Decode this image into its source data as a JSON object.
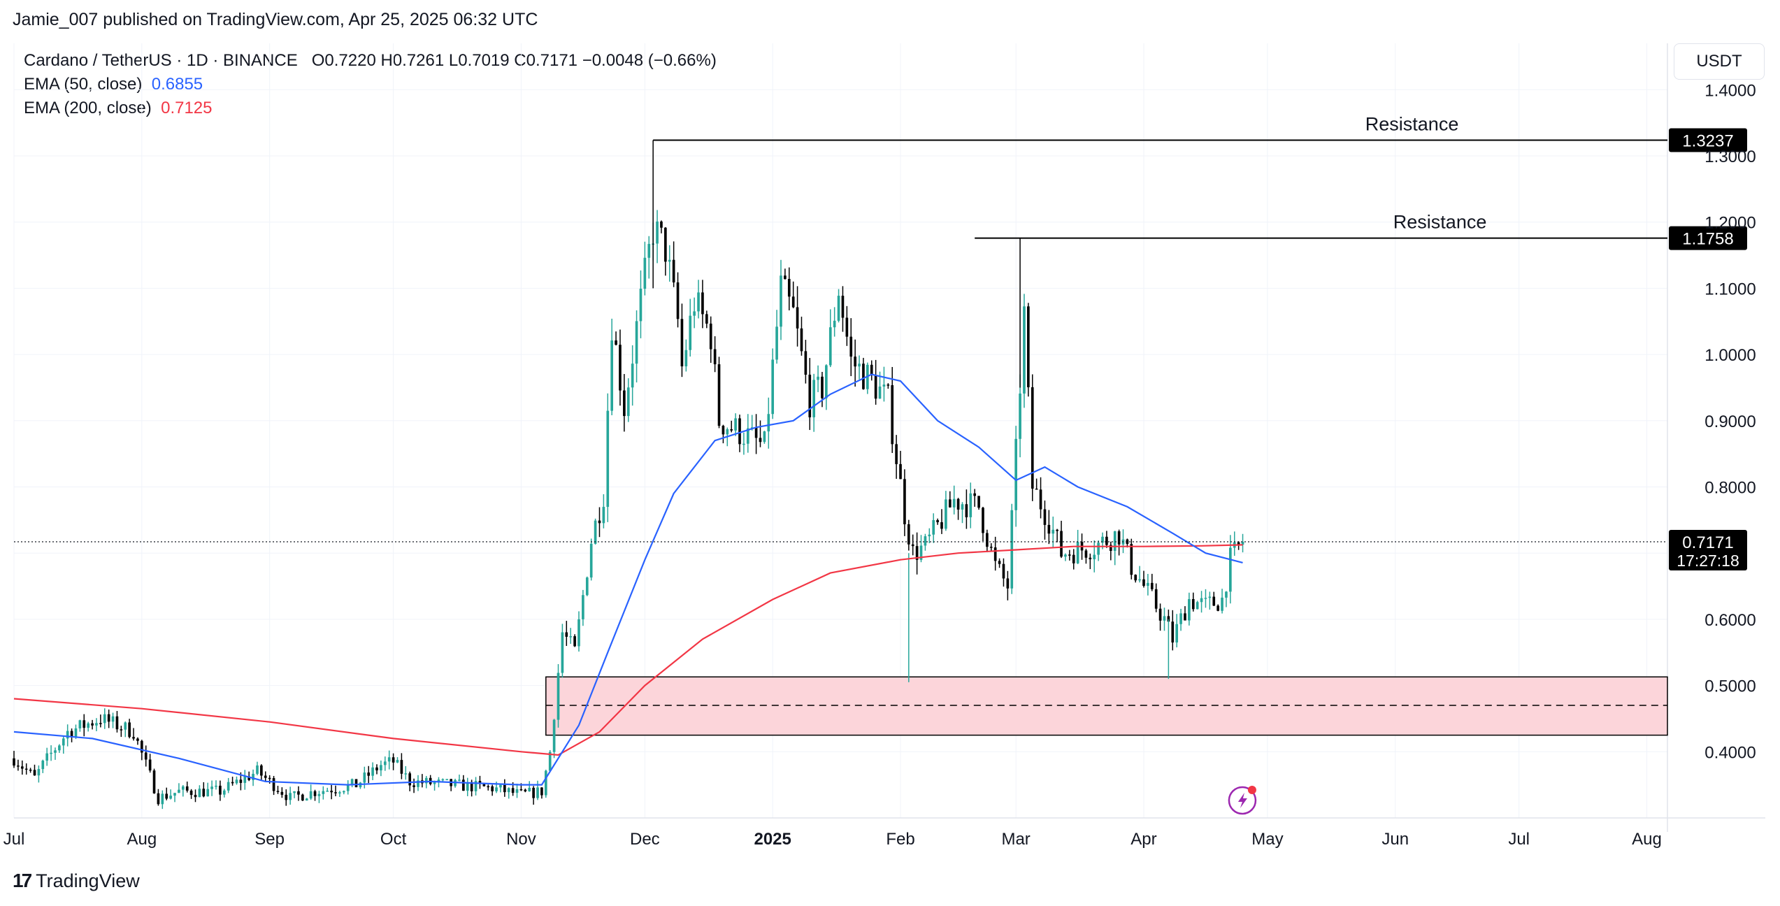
{
  "header": {
    "publisher": "Jamie_007 published on TradingView.com, Apr 25, 2025 06:32 UTC"
  },
  "legend": {
    "symbol": "Cardano / TetherUS · 1D · BINANCE",
    "ohlc": "O0.7220  H0.7261  L0.7019  C0.7171  −0.0048 (−0.66%)",
    "ema50_label": "EMA (50, close)",
    "ema50_value": "0.6855",
    "ema200_label": "EMA (200, close)",
    "ema200_value": "0.7125"
  },
  "axis": {
    "currency": "USDT",
    "countdown": "17:27:18"
  },
  "footer": {
    "brand": "TradingView"
  },
  "colors": {
    "up": "#26a69a",
    "down": "#000000",
    "ema50": "#2962ff",
    "ema200": "#f23645",
    "zone_fill": "#fcd5da",
    "grid": "#f0f3fa"
  },
  "chart_data": {
    "type": "candlestick",
    "title": "Cardano / TetherUS · 1D · BINANCE",
    "xlabel": "",
    "ylabel": "",
    "ylim": [
      0.3,
      1.47
    ],
    "y_ticks": [
      0.4,
      0.5,
      0.6,
      0.7,
      0.8,
      0.9,
      1.0,
      1.1,
      1.2,
      1.3,
      1.4
    ],
    "y_tick_labels": [
      "0.4000",
      "0.5000",
      "0.6000",
      "0.7000",
      "0.8000",
      "0.9000",
      "1.0000",
      "1.1000",
      "1.2000",
      "1.3000",
      "1.4000"
    ],
    "x_tick_labels": [
      "Jul",
      "Aug",
      "Sep",
      "Oct",
      "Nov",
      "Dec",
      "2025",
      "Feb",
      "Mar",
      "Apr",
      "May",
      "Jun",
      "Jul",
      "Aug"
    ],
    "x_tick_dates": [
      "2024-07-01",
      "2024-08-01",
      "2024-09-01",
      "2024-10-01",
      "2024-11-01",
      "2024-12-01",
      "2025-01-01",
      "2025-02-01",
      "2025-03-01",
      "2025-04-01",
      "2025-05-01",
      "2025-06-01",
      "2025-07-01",
      "2025-08-01"
    ],
    "x_range": [
      "2024-07-01",
      "2025-08-06"
    ],
    "last_date": "2025-04-25",
    "last_price": 0.7171,
    "last_price_label": "0.7171",
    "grid": true,
    "price_path": [
      [
        "2024-07-01",
        0.39
      ],
      [
        "2024-07-06",
        0.36
      ],
      [
        "2024-07-08",
        0.38
      ],
      [
        "2024-07-14",
        0.43
      ],
      [
        "2024-07-22",
        0.45
      ],
      [
        "2024-07-30",
        0.43
      ],
      [
        "2024-08-05",
        0.33
      ],
      [
        "2024-08-10",
        0.34
      ],
      [
        "2024-08-20",
        0.34
      ],
      [
        "2024-08-29",
        0.37
      ],
      [
        "2024-09-06",
        0.33
      ],
      [
        "2024-09-12",
        0.34
      ],
      [
        "2024-09-22",
        0.35
      ],
      [
        "2024-09-28",
        0.38
      ],
      [
        "2024-10-01",
        0.385
      ],
      [
        "2024-10-05",
        0.355
      ],
      [
        "2024-10-15",
        0.35
      ],
      [
        "2024-10-25",
        0.345
      ],
      [
        "2024-11-01",
        0.335
      ],
      [
        "2024-11-06",
        0.34
      ],
      [
        "2024-11-08",
        0.4
      ],
      [
        "2024-11-11",
        0.58
      ],
      [
        "2024-11-14",
        0.55
      ],
      [
        "2024-11-18",
        0.72
      ],
      [
        "2024-11-21",
        0.79
      ],
      [
        "2024-11-23",
        1.05
      ],
      [
        "2024-11-26",
        0.92
      ],
      [
        "2024-11-30",
        1.08
      ],
      [
        "2024-12-03",
        1.19
      ],
      [
        "2024-12-06",
        1.16
      ],
      [
        "2024-12-09",
        1.05
      ],
      [
        "2024-12-10",
        0.98
      ],
      [
        "2024-12-13",
        1.08
      ],
      [
        "2024-12-17",
        1.03
      ],
      [
        "2024-12-19",
        0.9
      ],
      [
        "2024-12-25",
        0.88
      ],
      [
        "2024-12-30",
        0.86
      ],
      [
        "2025-01-03",
        1.1
      ],
      [
        "2025-01-06",
        1.06
      ],
      [
        "2025-01-10",
        0.93
      ],
      [
        "2025-01-13",
        0.95
      ],
      [
        "2025-01-17",
        1.1
      ],
      [
        "2025-01-20",
        0.99
      ],
      [
        "2025-01-25",
        0.96
      ],
      [
        "2025-01-29",
        0.93
      ],
      [
        "2025-02-02",
        0.76
      ],
      [
        "2025-02-04",
        0.7
      ],
      [
        "2025-02-07",
        0.71
      ],
      [
        "2025-02-14",
        0.78
      ],
      [
        "2025-02-20",
        0.77
      ],
      [
        "2025-02-24",
        0.68
      ],
      [
        "2025-02-27",
        0.65
      ],
      [
        "2025-03-01",
        0.85
      ],
      [
        "2025-03-03",
        1.06
      ],
      [
        "2025-03-05",
        0.8
      ],
      [
        "2025-03-09",
        0.75
      ],
      [
        "2025-03-12",
        0.7
      ],
      [
        "2025-03-20",
        0.71
      ],
      [
        "2025-03-26",
        0.73
      ],
      [
        "2025-03-29",
        0.68
      ],
      [
        "2025-04-02",
        0.64
      ],
      [
        "2025-04-06",
        0.6
      ],
      [
        "2025-04-08",
        0.57
      ],
      [
        "2025-04-12",
        0.63
      ],
      [
        "2025-04-16",
        0.62
      ],
      [
        "2025-04-20",
        0.63
      ],
      [
        "2025-04-22",
        0.69
      ],
      [
        "2025-04-25",
        0.717
      ]
    ],
    "ema50_path": [
      [
        "2024-07-01",
        0.43
      ],
      [
        "2024-07-20",
        0.42
      ],
      [
        "2024-08-10",
        0.39
      ],
      [
        "2024-08-31",
        0.355
      ],
      [
        "2024-09-20",
        0.35
      ],
      [
        "2024-10-10",
        0.355
      ],
      [
        "2024-11-01",
        0.35
      ],
      [
        "2024-11-06",
        0.35
      ],
      [
        "2024-11-15",
        0.44
      ],
      [
        "2024-11-22",
        0.55
      ],
      [
        "2024-12-01",
        0.69
      ],
      [
        "2024-12-08",
        0.79
      ],
      [
        "2024-12-18",
        0.87
      ],
      [
        "2024-12-28",
        0.89
      ],
      [
        "2025-01-06",
        0.9
      ],
      [
        "2025-01-15",
        0.94
      ],
      [
        "2025-01-25",
        0.97
      ],
      [
        "2025-02-01",
        0.96
      ],
      [
        "2025-02-10",
        0.9
      ],
      [
        "2025-02-20",
        0.86
      ],
      [
        "2025-03-01",
        0.81
      ],
      [
        "2025-03-08",
        0.83
      ],
      [
        "2025-03-16",
        0.8
      ],
      [
        "2025-03-28",
        0.77
      ],
      [
        "2025-04-08",
        0.73
      ],
      [
        "2025-04-16",
        0.7
      ],
      [
        "2025-04-25",
        0.6855
      ]
    ],
    "ema200_path": [
      [
        "2024-07-01",
        0.48
      ],
      [
        "2024-08-01",
        0.465
      ],
      [
        "2024-09-01",
        0.445
      ],
      [
        "2024-10-01",
        0.42
      ],
      [
        "2024-11-01",
        0.4
      ],
      [
        "2024-11-10",
        0.395
      ],
      [
        "2024-11-20",
        0.43
      ],
      [
        "2024-12-01",
        0.5
      ],
      [
        "2024-12-15",
        0.57
      ],
      [
        "2025-01-01",
        0.63
      ],
      [
        "2025-01-15",
        0.67
      ],
      [
        "2025-02-01",
        0.69
      ],
      [
        "2025-02-15",
        0.7
      ],
      [
        "2025-03-01",
        0.705
      ],
      [
        "2025-03-15",
        0.71
      ],
      [
        "2025-04-01",
        0.71
      ],
      [
        "2025-04-15",
        0.711
      ],
      [
        "2025-04-25",
        0.7125
      ]
    ],
    "resistance_lines": [
      {
        "label": "Resistance",
        "price": 1.3237,
        "price_label": "1.3237",
        "start_date": "2024-12-03"
      },
      {
        "label": "Resistance",
        "price": 1.1758,
        "price_label": "1.1758",
        "start_date": "2025-02-19"
      }
    ],
    "support_zone": {
      "start_date": "2024-11-07",
      "top": 0.513,
      "bottom": 0.425,
      "mid": 0.47
    }
  }
}
